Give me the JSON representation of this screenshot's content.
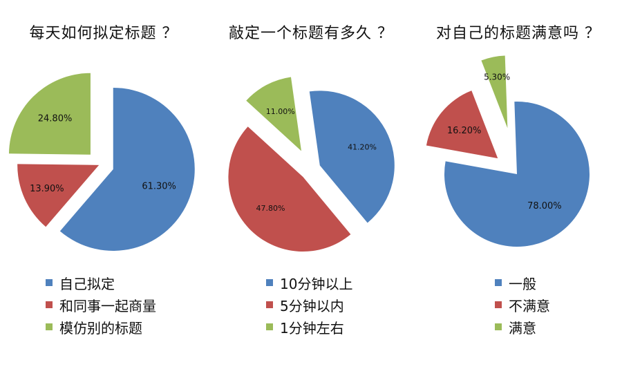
{
  "chart_data": [
    {
      "type": "pie",
      "title": "每天如何拟定标题 ？",
      "categories": [
        "自己拟定",
        "和同事一起商量",
        "模仿别的标题"
      ],
      "series": [
        {
          "values": [
            61.3,
            13.9,
            24.8
          ]
        }
      ],
      "data_labels": [
        "61.30%",
        "13.90%",
        "24.80%"
      ],
      "colors": [
        "#4F81BD",
        "#C0504D",
        "#9BBB59"
      ],
      "exploded": true,
      "legend": "bottom"
    },
    {
      "type": "pie",
      "title": "敲定一个标题有多久 ？",
      "categories": [
        "10分钟以上",
        "5分钟以内",
        "1分钟左右"
      ],
      "series": [
        {
          "values": [
            41.2,
            47.8,
            11.0
          ]
        }
      ],
      "data_labels": [
        "41.20%",
        "47.80%",
        "11.00%"
      ],
      "colors": [
        "#4F81BD",
        "#C0504D",
        "#9BBB59"
      ],
      "exploded": true,
      "legend": "bottom"
    },
    {
      "type": "pie",
      "title": "对自己的标题满意吗 ？",
      "categories": [
        "一般",
        "不满意",
        "满意"
      ],
      "series": [
        {
          "values": [
            78.0,
            16.2,
            5.3
          ]
        }
      ],
      "data_labels": [
        "78.00%",
        "16.20%",
        "5.30%"
      ],
      "colors": [
        "#4F81BD",
        "#C0504D",
        "#9BBB59"
      ],
      "exploded": true,
      "legend": "bottom"
    }
  ]
}
